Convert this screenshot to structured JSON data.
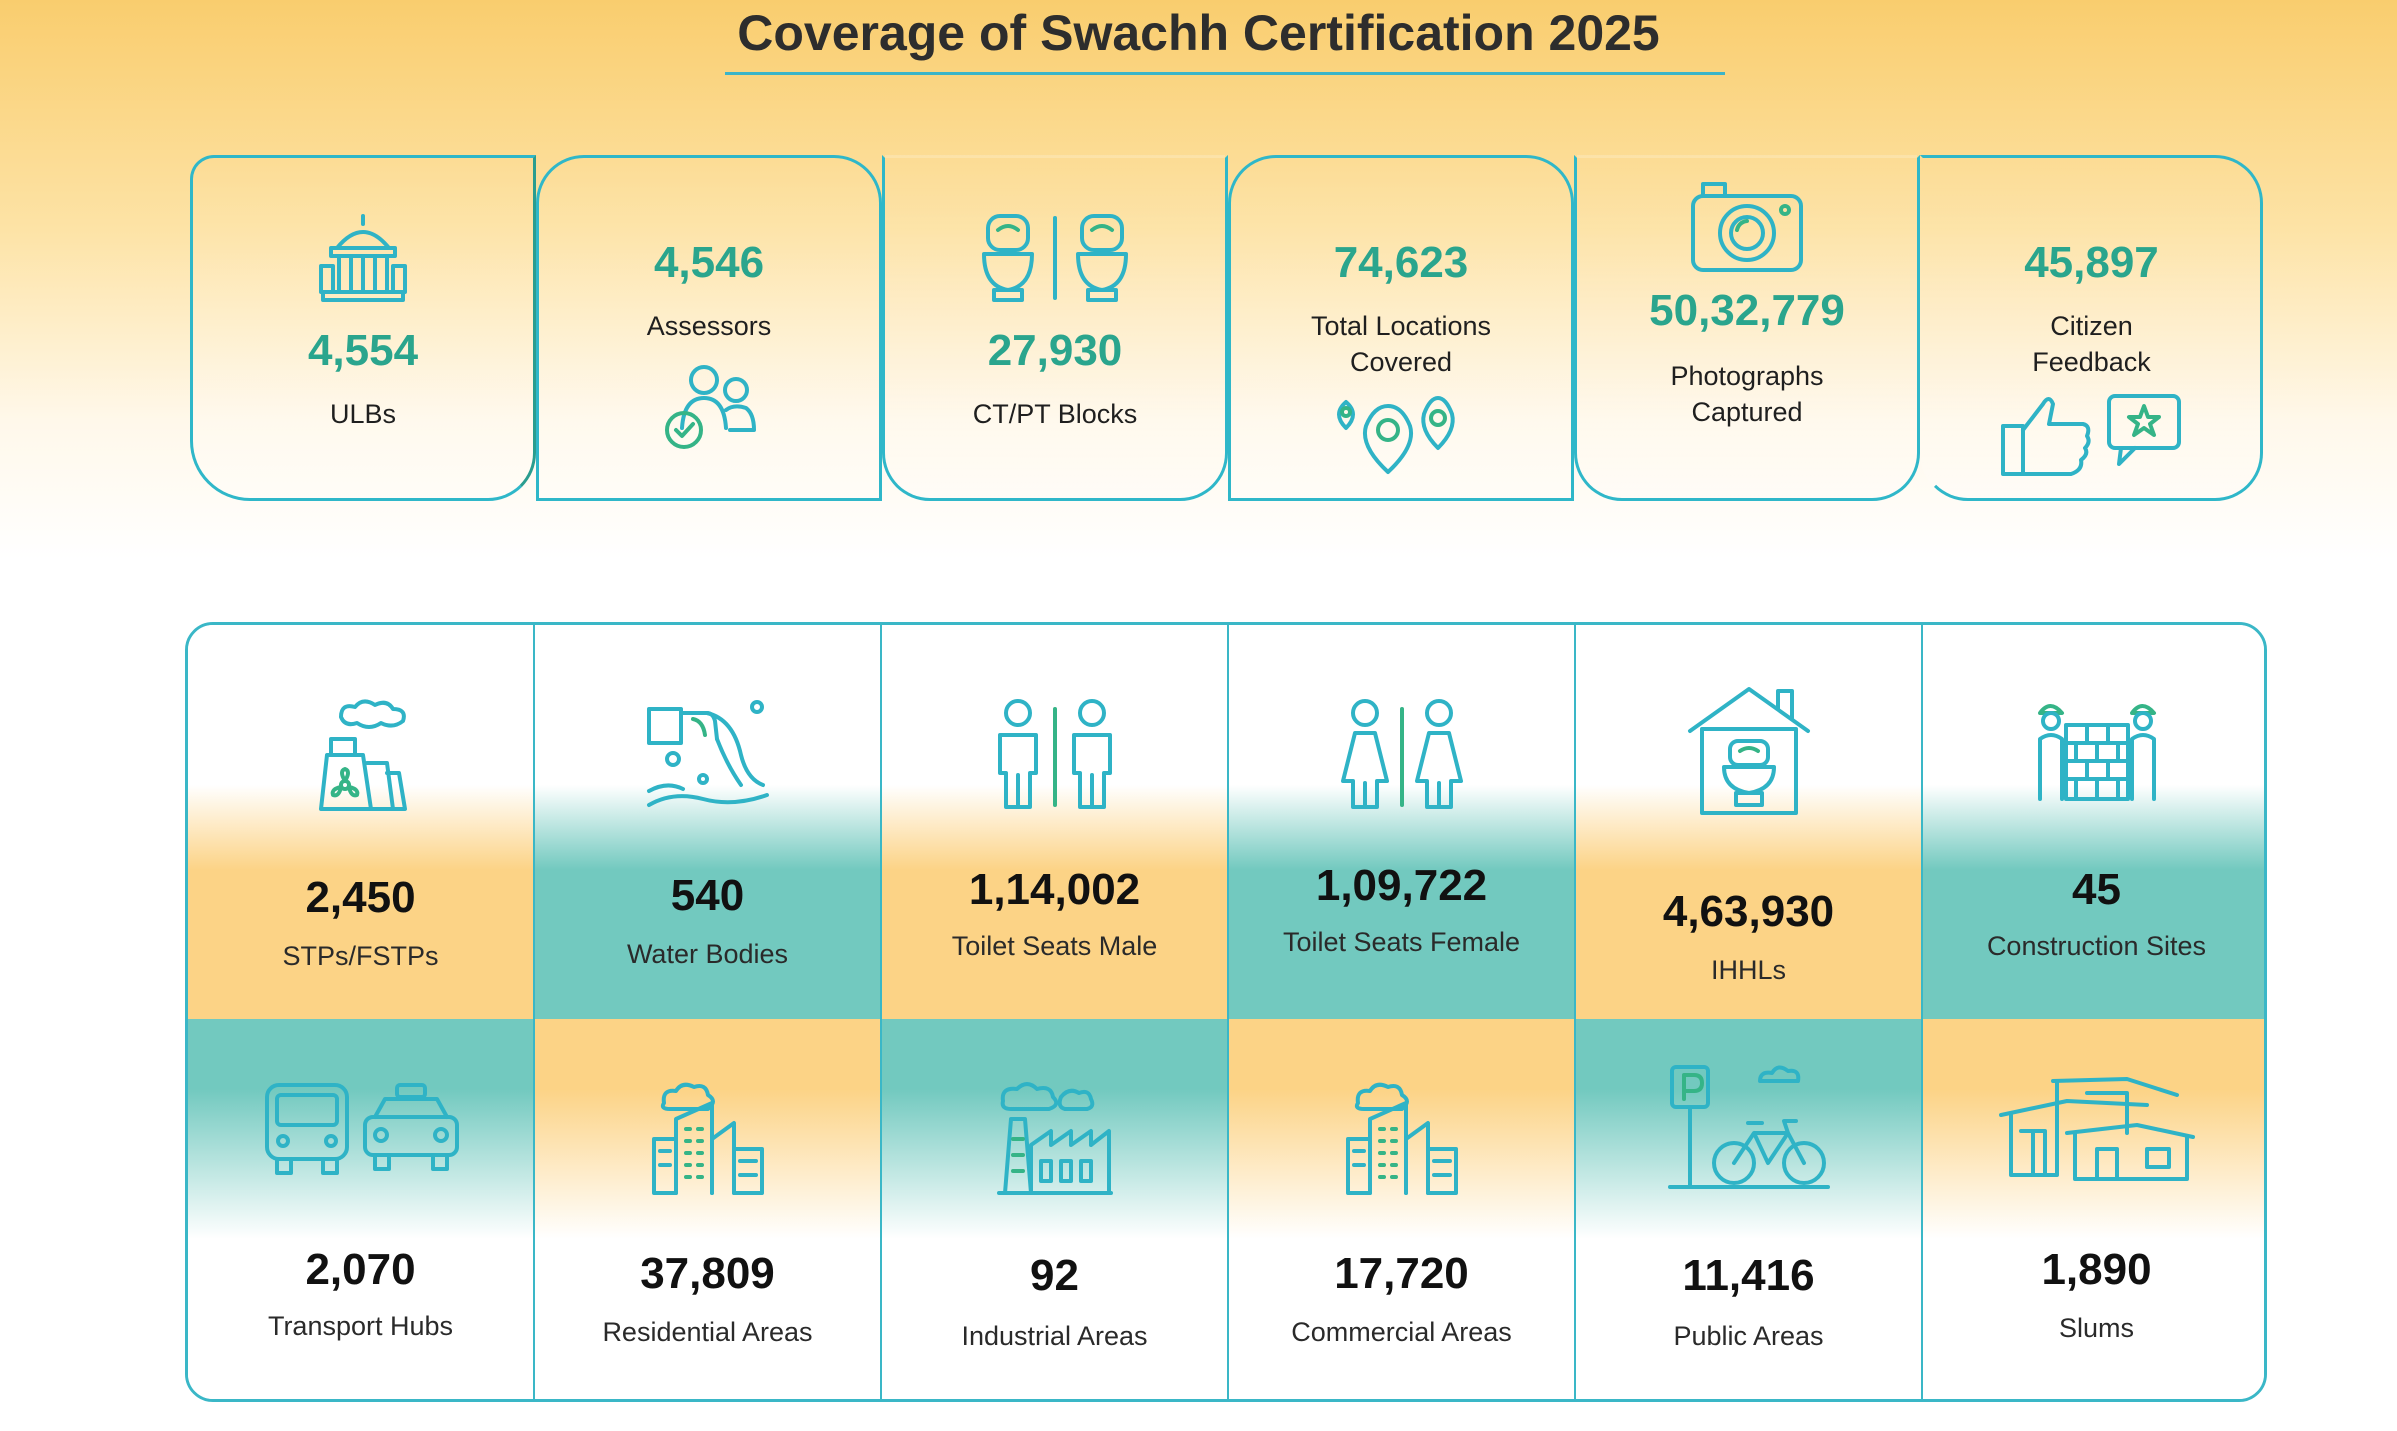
{
  "title": "Coverage of Swachh Certification 2025",
  "accent_teal": "#2fb7c9",
  "accent_green": "#2aa58d",
  "summary": [
    {
      "value": "4,554",
      "label": "ULBs",
      "icon": "government-building-icon"
    },
    {
      "value": "4,546",
      "label": "Assessors",
      "icon": "assessors-group-icon"
    },
    {
      "value": "27,930",
      "label": "CT/PT Blocks",
      "icon": "toilets-icon"
    },
    {
      "value": "74,623",
      "label": "Total Locations Covered",
      "icon": "location-pins-icon"
    },
    {
      "value": "50,32,779",
      "label": "Photographs Captured",
      "icon": "camera-icon"
    },
    {
      "value": "45,897",
      "label": "Citizen Feedback",
      "icon": "thumbs-up-feedback-icon"
    }
  ],
  "grid": {
    "row1": [
      {
        "value": "2,450",
        "label": "STPs/FSTPs",
        "icon": "treatment-plant-icon"
      },
      {
        "value": "540",
        "label": "Water Bodies",
        "icon": "water-outflow-icon"
      },
      {
        "value": "1,14,002",
        "label": "Toilet Seats Male",
        "icon": "male-toilet-icon"
      },
      {
        "value": "1,09,722",
        "label": "Toilet Seats Female",
        "icon": "female-toilet-icon"
      },
      {
        "value": "4,63,930",
        "label": "IHHLs",
        "icon": "household-toilet-icon"
      },
      {
        "value": "45",
        "label": "Construction Sites",
        "icon": "construction-workers-icon"
      }
    ],
    "row2": [
      {
        "value": "2,070",
        "label": "Transport Hubs",
        "icon": "bus-taxi-icon"
      },
      {
        "value": "37,809",
        "label": "Residential Areas",
        "icon": "residential-buildings-icon"
      },
      {
        "value": "92",
        "label": "Industrial Areas",
        "icon": "factory-icon"
      },
      {
        "value": "17,720",
        "label": "Commercial Areas",
        "icon": "commercial-buildings-icon"
      },
      {
        "value": "11,416",
        "label": "Public Areas",
        "icon": "parking-bicycle-icon"
      },
      {
        "value": "1,890",
        "label": "Slums",
        "icon": "slum-houses-icon"
      }
    ]
  }
}
